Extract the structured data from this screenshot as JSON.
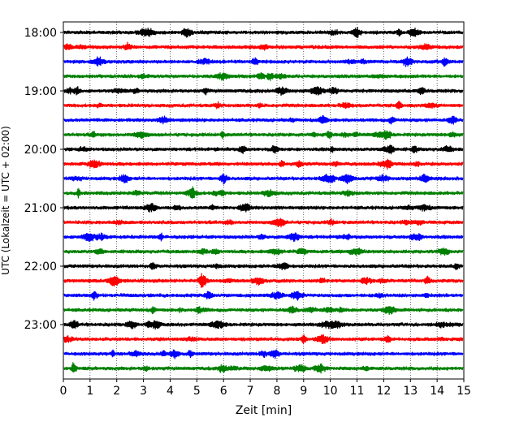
{
  "chart_data": {
    "type": "line",
    "title": "",
    "xlabel": "Zeit  [min]",
    "ylabel": "UTC (Lokalzeit = UTC + 02:00)",
    "xlim": [
      0,
      15
    ],
    "x_ticks": [
      0,
      1,
      2,
      3,
      4,
      5,
      6,
      7,
      8,
      9,
      10,
      11,
      12,
      13,
      14,
      15
    ],
    "x_tick_labels": [
      "0",
      "1",
      "2",
      "3",
      "4",
      "5",
      "6",
      "7",
      "8",
      "9",
      "10",
      "11",
      "12",
      "13",
      "14",
      "15"
    ],
    "y_tick_labels": [
      "18:00",
      "19:00",
      "20:00",
      "21:00",
      "22:00",
      "23:00"
    ],
    "grid": "vertical-dotted",
    "trace_colors": [
      "#000000",
      "#ff0000",
      "#0000ff",
      "#008000"
    ],
    "traces_per_hour": 4,
    "trace_count": 24,
    "start_time": "18:00",
    "trace_duration_min": 15
  }
}
